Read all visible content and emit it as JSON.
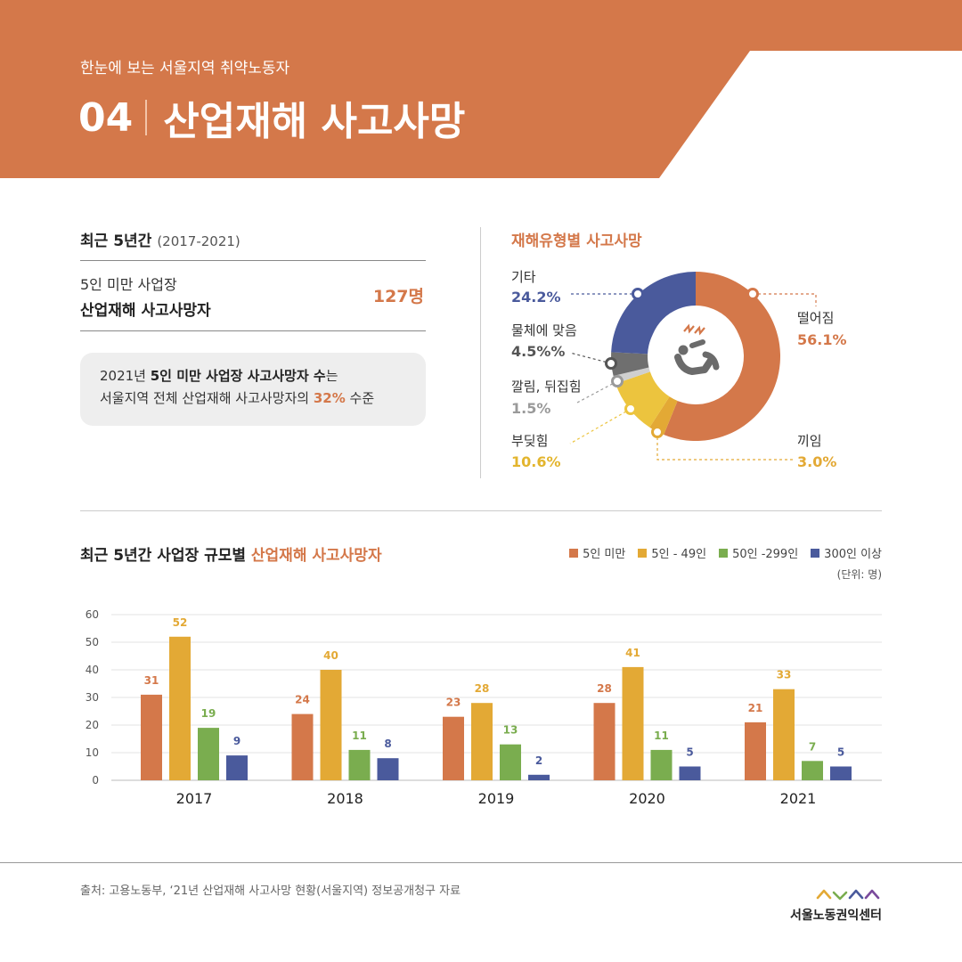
{
  "header": {
    "subtitle": "한눈에 보는 서울지역 취약노동자",
    "number": "04",
    "title": "산업재해 사고사망"
  },
  "summary": {
    "title": "최근 5년간",
    "period": "(2017-2021)",
    "label_line1": "5인 미만 사업장",
    "label_line2": "산업재해 사고사망자",
    "value": "127명",
    "note_year": "2021년 ",
    "note_bold": "5인 미만 사업장 사고사망자 수",
    "note_after": "는",
    "note_line2_pre": "서울지역 전체 산업재해 사고사망자의 ",
    "note_pct": "32%",
    "note_line2_post": " 수준"
  },
  "pie": {
    "title": "재해유형별 사고사망",
    "slices": [
      {
        "label": "떨어짐",
        "value_text": "56.1%",
        "value": 56.1,
        "color": "#d4784a"
      },
      {
        "label": "끼임",
        "value_text": "3.0%",
        "value": 3.0,
        "color": "#e3a935"
      },
      {
        "label": "부딪힘",
        "value_text": "10.6%",
        "value": 10.6,
        "color": "#ecc43e"
      },
      {
        "label": "깔림, 뒤집힘",
        "value_text": "1.5%",
        "value": 1.5,
        "color": "#cfcfcf"
      },
      {
        "label": "물체에 맞음",
        "value_text": "4.5%%",
        "value": 4.5,
        "color": "#6f6f6f"
      },
      {
        "label": "기타",
        "value_text": "24.2%",
        "value": 24.2,
        "color": "#4a5a9c"
      }
    ],
    "value_colors": [
      "#d4784a",
      "#e3a935",
      "#e3b52e",
      "#9a9a9a",
      "#555555",
      "#4a5a9c"
    ]
  },
  "bar": {
    "title_pre": "최근 5년간 사업장 규모별 ",
    "title_hl": "산업재해 사고사망자",
    "unit": "(단위: 명)"
  },
  "chart_data": {
    "type": "bar",
    "categories": [
      "2017",
      "2018",
      "2019",
      "2020",
      "2021"
    ],
    "series": [
      {
        "name": "5인 미만",
        "color": "#d4784a",
        "values": [
          31,
          24,
          23,
          28,
          21
        ]
      },
      {
        "name": "5인 - 49인",
        "color": "#e3a935",
        "values": [
          52,
          40,
          28,
          41,
          33
        ]
      },
      {
        "name": "50인 -299인",
        "color": "#7aad4f",
        "values": [
          19,
          11,
          13,
          11,
          7
        ]
      },
      {
        "name": "300인 이상",
        "color": "#4a5a9c",
        "values": [
          9,
          8,
          2,
          5,
          5
        ]
      }
    ],
    "ylim": [
      0,
      60
    ],
    "yticks": [
      0,
      10,
      20,
      30,
      40,
      50,
      60
    ],
    "grid": true,
    "legend": "top-right"
  },
  "footer": {
    "source": "출처: 고용노동부, ‘21년 산업재해 사고사망 현황(서울지역) 정보공개청구 자료",
    "org": "서울노동권익센터"
  },
  "colors": {
    "accent": "#d4784a",
    "header": "#d4784a"
  }
}
